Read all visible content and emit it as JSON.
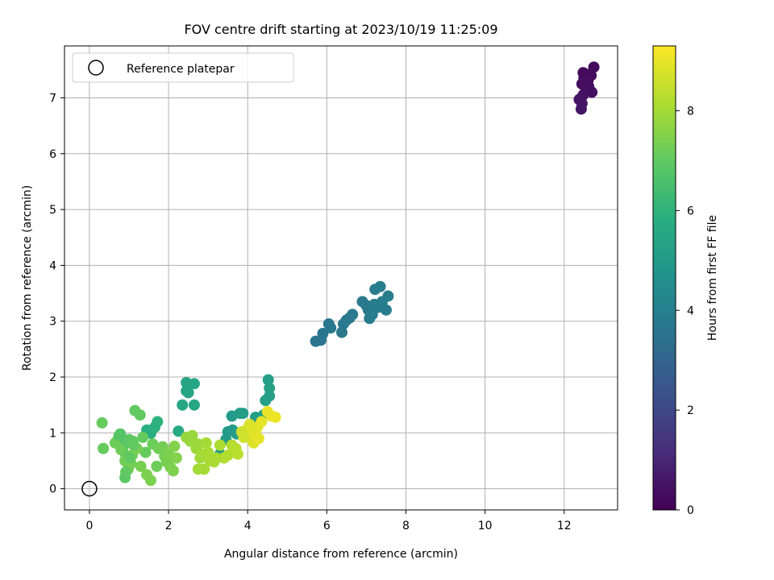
{
  "chart_data": {
    "type": "scatter",
    "title": "FOV centre drift starting at 2023/10/19 11:25:09",
    "xlabel": "Angular distance from reference (arcmin)",
    "ylabel": "Rotation from reference (arcmin)",
    "xlim": [
      -0.63,
      13.35
    ],
    "ylim": [
      -0.38,
      7.93
    ],
    "xticks": [
      0,
      2,
      4,
      6,
      8,
      10,
      12
    ],
    "yticks": [
      0,
      1,
      2,
      3,
      4,
      5,
      6,
      7
    ],
    "grid": true,
    "legend": {
      "placement": "upper-left",
      "entries": [
        "Reference platepar"
      ]
    },
    "reference_point": {
      "x": 0,
      "y": 0
    },
    "colorbar": {
      "label": "Hours from first FF file",
      "range": [
        0,
        9.3
      ],
      "ticks": [
        0,
        2,
        4,
        6,
        8
      ],
      "colormap": "viridis"
    },
    "series": [
      {
        "points": [
          [
            12.48,
            7.45
          ],
          [
            12.58,
            7.42
          ],
          [
            12.75,
            7.55
          ],
          [
            12.68,
            7.4
          ],
          [
            12.5,
            7.35
          ],
          [
            12.6,
            7.3
          ],
          [
            12.45,
            7.25
          ],
          [
            12.62,
            7.2
          ],
          [
            12.55,
            7.15
          ],
          [
            12.7,
            7.1
          ],
          [
            12.48,
            7.05
          ],
          [
            12.38,
            6.97
          ],
          [
            12.45,
            6.9
          ],
          [
            12.43,
            6.8
          ],
          [
            5.72,
            2.64
          ],
          [
            5.85,
            2.66
          ],
          [
            5.9,
            2.78
          ],
          [
            6.05,
            2.95
          ],
          [
            6.1,
            2.88
          ],
          [
            6.38,
            2.8
          ],
          [
            6.42,
            2.95
          ],
          [
            6.5,
            3.02
          ],
          [
            6.58,
            3.06
          ],
          [
            6.65,
            3.12
          ],
          [
            6.9,
            3.35
          ],
          [
            7.0,
            3.28
          ],
          [
            7.05,
            3.2
          ],
          [
            7.08,
            3.05
          ],
          [
            7.15,
            3.12
          ],
          [
            7.2,
            3.3
          ],
          [
            7.22,
            3.57
          ],
          [
            7.3,
            3.25
          ],
          [
            7.35,
            3.62
          ],
          [
            7.4,
            3.35
          ],
          [
            7.5,
            3.2
          ],
          [
            7.55,
            3.45
          ],
          [
            3.3,
            0.62
          ],
          [
            3.45,
            0.88
          ],
          [
            3.5,
            1.02
          ],
          [
            3.6,
            1.3
          ],
          [
            3.62,
            1.05
          ],
          [
            3.65,
            0.72
          ],
          [
            3.72,
            0.98
          ],
          [
            3.8,
            1.35
          ],
          [
            3.88,
            1.35
          ],
          [
            4.05,
            1.1
          ],
          [
            4.2,
            1.28
          ],
          [
            4.4,
            1.32
          ],
          [
            4.45,
            1.58
          ],
          [
            4.52,
            1.95
          ],
          [
            4.55,
            1.8
          ],
          [
            4.55,
            1.66
          ],
          [
            2.45,
            1.9
          ],
          [
            2.5,
            1.72
          ],
          [
            2.45,
            1.75
          ],
          [
            2.65,
            1.88
          ],
          [
            2.65,
            1.5
          ],
          [
            2.35,
            1.5
          ],
          [
            2.25,
            1.03
          ],
          [
            1.45,
            1.05
          ],
          [
            1.55,
            0.99
          ],
          [
            1.65,
            1.1
          ],
          [
            1.72,
            1.2
          ],
          [
            0.72,
            0.88
          ],
          [
            0.78,
            0.98
          ],
          [
            0.85,
            0.75
          ],
          [
            0.92,
            0.6
          ],
          [
            1.0,
            0.88
          ],
          [
            1.1,
            0.85
          ],
          [
            1.15,
            1.4
          ],
          [
            1.28,
            1.32
          ],
          [
            1.35,
            0.92
          ],
          [
            1.42,
            0.65
          ],
          [
            1.6,
            0.8
          ],
          [
            1.7,
            0.4
          ],
          [
            1.75,
            0.72
          ],
          [
            1.85,
            0.75
          ],
          [
            1.9,
            0.58
          ],
          [
            1.95,
            0.48
          ],
          [
            2.0,
            0.62
          ],
          [
            2.05,
            0.38
          ],
          [
            2.12,
            0.32
          ],
          [
            2.15,
            0.76
          ],
          [
            2.2,
            0.55
          ],
          [
            0.32,
            1.18
          ],
          [
            0.35,
            0.72
          ],
          [
            0.65,
            0.82
          ],
          [
            0.8,
            0.7
          ],
          [
            0.9,
            0.5
          ],
          [
            0.98,
            0.35
          ],
          [
            1.05,
            0.45
          ],
          [
            1.08,
            0.6
          ],
          [
            1.2,
            0.72
          ],
          [
            1.3,
            0.4
          ],
          [
            1.45,
            0.25
          ],
          [
            1.55,
            0.15
          ],
          [
            0.9,
            0.2
          ],
          [
            0.92,
            0.3
          ],
          [
            1.02,
            0.55
          ],
          [
            1.12,
            0.78
          ],
          [
            0.75,
            0.95
          ],
          [
            2.45,
            0.92
          ],
          [
            2.55,
            0.85
          ],
          [
            2.6,
            0.95
          ],
          [
            2.7,
            0.72
          ],
          [
            2.75,
            0.8
          ],
          [
            2.8,
            0.55
          ],
          [
            2.85,
            0.62
          ],
          [
            2.9,
            0.35
          ],
          [
            2.95,
            0.82
          ],
          [
            3.0,
            0.65
          ],
          [
            3.05,
            0.5
          ],
          [
            3.15,
            0.48
          ],
          [
            3.3,
            0.78
          ],
          [
            3.4,
            0.55
          ],
          [
            3.5,
            0.6
          ],
          [
            3.6,
            0.78
          ],
          [
            3.7,
            0.72
          ],
          [
            3.75,
            0.62
          ],
          [
            2.75,
            0.35
          ],
          [
            3.2,
            0.55
          ],
          [
            3.95,
            0.95
          ],
          [
            4.0,
            1.08
          ],
          [
            4.05,
            1.15
          ],
          [
            4.1,
            0.88
          ],
          [
            4.12,
            1.0
          ],
          [
            4.15,
            0.82
          ],
          [
            4.2,
            0.95
          ],
          [
            4.25,
            1.1
          ],
          [
            4.28,
            0.9
          ],
          [
            4.35,
            1.2
          ],
          [
            4.5,
            1.38
          ],
          [
            4.6,
            1.3
          ],
          [
            4.7,
            1.28
          ],
          [
            3.85,
            1.02
          ],
          [
            3.9,
            0.92
          ]
        ],
        "hours": [
          0.2,
          0.2,
          0.25,
          0.25,
          0.3,
          0.3,
          0.35,
          0.35,
          0.4,
          0.4,
          0.45,
          0.5,
          0.5,
          0.55,
          3.6,
          3.6,
          3.65,
          3.65,
          3.7,
          3.7,
          3.7,
          3.75,
          3.75,
          3.75,
          3.8,
          3.8,
          3.8,
          3.8,
          3.85,
          3.85,
          3.85,
          3.85,
          3.9,
          3.9,
          3.9,
          3.9,
          5.0,
          5.0,
          5.05,
          5.05,
          5.05,
          5.1,
          5.1,
          5.15,
          5.15,
          5.2,
          5.2,
          5.2,
          5.25,
          5.25,
          5.25,
          5.25,
          5.4,
          5.4,
          5.45,
          5.45,
          5.5,
          5.5,
          5.6,
          5.8,
          5.8,
          5.9,
          5.95,
          6.7,
          6.75,
          6.8,
          6.85,
          6.9,
          6.95,
          7.0,
          7.0,
          7.05,
          7.1,
          7.15,
          7.2,
          7.25,
          7.3,
          7.3,
          7.35,
          7.4,
          7.4,
          7.45,
          7.5,
          7.5,
          7.1,
          7.1,
          7.2,
          7.2,
          7.25,
          7.25,
          7.3,
          7.3,
          7.35,
          7.35,
          7.4,
          7.4,
          6.9,
          7.0,
          7.0,
          7.05,
          6.8,
          7.8,
          7.85,
          7.85,
          7.9,
          7.9,
          7.95,
          8.0,
          8.0,
          8.0,
          8.05,
          8.1,
          8.1,
          8.15,
          8.2,
          8.2,
          8.25,
          8.3,
          8.3,
          8.0,
          8.1,
          8.7,
          8.75,
          8.8,
          8.8,
          8.85,
          8.85,
          8.9,
          8.9,
          8.95,
          8.95,
          9.0,
          9.05,
          9.1,
          8.6,
          8.65
        ]
      }
    ]
  }
}
